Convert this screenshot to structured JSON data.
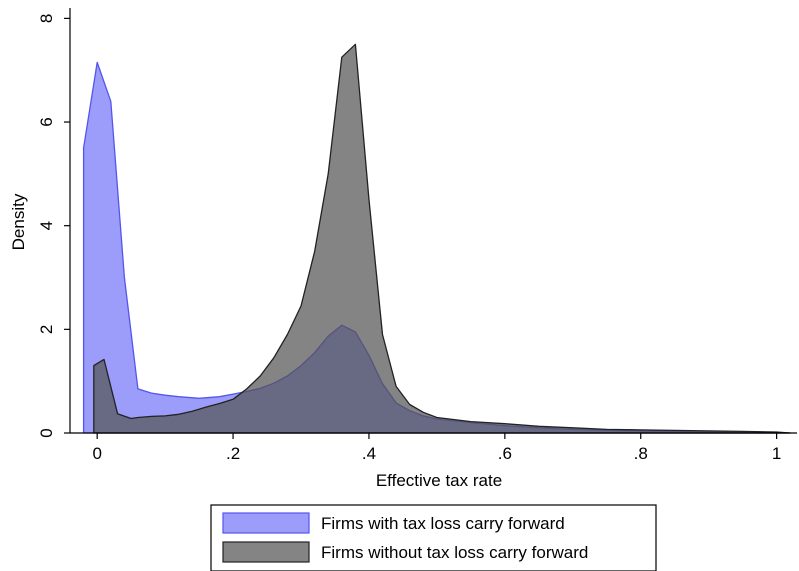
{
  "chart_data": {
    "type": "area",
    "title": "",
    "xlabel": "Effective tax rate",
    "ylabel": "Density",
    "xlim": [
      -0.04,
      1.03
    ],
    "ylim": [
      0,
      8.2
    ],
    "x_ticks": [
      0,
      0.2,
      0.4,
      0.6,
      0.8,
      1
    ],
    "x_tick_labels": [
      "0",
      ".2",
      ".4",
      ".6",
      ".8",
      "1"
    ],
    "y_ticks": [
      0,
      2,
      4,
      6,
      8
    ],
    "y_tick_labels": [
      "0",
      "2",
      "4",
      "6",
      "8"
    ],
    "grid": false,
    "legend_position": "bottom",
    "series": [
      {
        "name": "Firms with tax loss carry forward",
        "color": "#7b7cf8",
        "edge_color": "#5555ee",
        "opacity": 0.75,
        "points": [
          [
            -0.02,
            0
          ],
          [
            -0.02,
            5.5
          ],
          [
            0,
            7.15
          ],
          [
            0.02,
            6.4
          ],
          [
            0.04,
            3.0
          ],
          [
            0.06,
            0.85
          ],
          [
            0.08,
            0.77
          ],
          [
            0.1,
            0.73
          ],
          [
            0.12,
            0.7
          ],
          [
            0.15,
            0.67
          ],
          [
            0.18,
            0.7
          ],
          [
            0.2,
            0.75
          ],
          [
            0.22,
            0.8
          ],
          [
            0.24,
            0.86
          ],
          [
            0.26,
            0.96
          ],
          [
            0.28,
            1.1
          ],
          [
            0.3,
            1.3
          ],
          [
            0.32,
            1.55
          ],
          [
            0.34,
            1.87
          ],
          [
            0.36,
            2.08
          ],
          [
            0.38,
            1.95
          ],
          [
            0.4,
            1.5
          ],
          [
            0.42,
            0.95
          ],
          [
            0.44,
            0.58
          ],
          [
            0.46,
            0.43
          ],
          [
            0.48,
            0.33
          ],
          [
            0.5,
            0.27
          ],
          [
            0.55,
            0.2
          ],
          [
            0.6,
            0.14
          ],
          [
            0.65,
            0.1
          ],
          [
            0.7,
            0.07
          ],
          [
            0.75,
            0.05
          ],
          [
            0.8,
            0.04
          ],
          [
            0.85,
            0.03
          ],
          [
            0.9,
            0.02
          ],
          [
            0.95,
            0.02
          ],
          [
            1.0,
            0.01
          ],
          [
            1.02,
            0
          ],
          [
            -0.02,
            0
          ]
        ]
      },
      {
        "name": "Firms without tax loss carry forward",
        "color": "#555555",
        "edge_color": "#222222",
        "opacity": 0.72,
        "points": [
          [
            -0.005,
            0
          ],
          [
            -0.005,
            1.3
          ],
          [
            0.01,
            1.42
          ],
          [
            0.03,
            0.37
          ],
          [
            0.05,
            0.28
          ],
          [
            0.06,
            0.3
          ],
          [
            0.08,
            0.32
          ],
          [
            0.1,
            0.33
          ],
          [
            0.12,
            0.36
          ],
          [
            0.14,
            0.42
          ],
          [
            0.16,
            0.5
          ],
          [
            0.18,
            0.57
          ],
          [
            0.2,
            0.65
          ],
          [
            0.22,
            0.85
          ],
          [
            0.24,
            1.1
          ],
          [
            0.26,
            1.45
          ],
          [
            0.28,
            1.9
          ],
          [
            0.3,
            2.45
          ],
          [
            0.32,
            3.5
          ],
          [
            0.34,
            5.0
          ],
          [
            0.36,
            7.25
          ],
          [
            0.38,
            7.5
          ],
          [
            0.4,
            4.5
          ],
          [
            0.42,
            1.9
          ],
          [
            0.44,
            0.9
          ],
          [
            0.46,
            0.55
          ],
          [
            0.48,
            0.4
          ],
          [
            0.5,
            0.3
          ],
          [
            0.55,
            0.22
          ],
          [
            0.6,
            0.18
          ],
          [
            0.65,
            0.13
          ],
          [
            0.7,
            0.1
          ],
          [
            0.75,
            0.07
          ],
          [
            0.8,
            0.06
          ],
          [
            0.85,
            0.05
          ],
          [
            0.9,
            0.04
          ],
          [
            0.95,
            0.03
          ],
          [
            1.0,
            0.02
          ],
          [
            1.02,
            0
          ],
          [
            -0.005,
            0
          ]
        ]
      }
    ]
  }
}
